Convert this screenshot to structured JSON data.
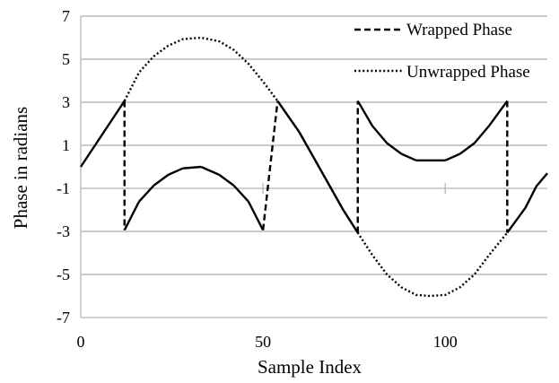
{
  "chart_data": {
    "type": "line",
    "title": "",
    "xlabel": "Sample Index",
    "ylabel": "Phase in radians",
    "xlim": [
      0,
      128
    ],
    "ylim": [
      -7,
      7
    ],
    "x_ticks": [
      0,
      50,
      100
    ],
    "x_tick_labels": [
      "0",
      "50",
      "100"
    ],
    "y_ticks": [
      7,
      5,
      3,
      1,
      -1,
      -3,
      -5,
      -7
    ],
    "y_tick_labels": [
      "7",
      "5",
      "3",
      "1",
      "-1",
      "-3",
      "-5",
      "-7"
    ],
    "grid": true,
    "legend_position": "top-right",
    "series": [
      {
        "name": "Wrapped Phase",
        "style": "dashed",
        "x": [
          0,
          12,
          12,
          16,
          20,
          24,
          28,
          33,
          38,
          42,
          46,
          50,
          54,
          54,
          60,
          66,
          72,
          76,
          76,
          80,
          84,
          88,
          92,
          96,
          100,
          104,
          108,
          112,
          117,
          117,
          122,
          125,
          128
        ],
        "y": [
          0.0,
          3.06,
          -2.94,
          -1.61,
          -0.87,
          -0.37,
          -0.07,
          0.0,
          -0.37,
          -0.87,
          -1.61,
          -2.94,
          3.06,
          3.06,
          1.6,
          -0.2,
          -2.0,
          -3.06,
          3.06,
          1.9,
          1.1,
          0.6,
          0.3,
          0.3,
          0.3,
          0.6,
          1.1,
          1.9,
          3.06,
          -3.06,
          -1.9,
          -0.9,
          -0.3
        ]
      },
      {
        "name": "Unwrapped Phase",
        "style": "dotted",
        "x": [
          12,
          16,
          20,
          24,
          28,
          33,
          38,
          42,
          46,
          50,
          54,
          60,
          66,
          72,
          76,
          80,
          84,
          88,
          92,
          96,
          100,
          104,
          108,
          112,
          117
        ],
        "y": [
          3.06,
          4.39,
          5.13,
          5.63,
          5.93,
          6.0,
          5.83,
          5.43,
          4.79,
          3.96,
          3.06,
          1.6,
          -0.2,
          -2.0,
          -3.06,
          -4.1,
          -5.0,
          -5.6,
          -5.95,
          -6.0,
          -5.95,
          -5.6,
          -5.0,
          -4.1,
          -3.06
        ]
      }
    ]
  }
}
